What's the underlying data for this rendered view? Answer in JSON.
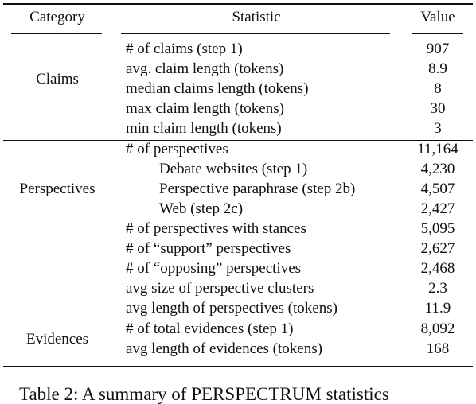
{
  "table": {
    "header": [
      "Category",
      "Statistic",
      "Value"
    ],
    "groups": [
      {
        "category": "Claims",
        "rows": [
          {
            "statistic": "# of claims (step 1)",
            "value": "907"
          },
          {
            "statistic": "avg. claim length (tokens)",
            "value": "8.9"
          },
          {
            "statistic": "median claims length (tokens)",
            "value": "8"
          },
          {
            "statistic": "max claim length (tokens)",
            "value": "30"
          },
          {
            "statistic": "min claim length (tokens)",
            "value": "3"
          }
        ]
      },
      {
        "category": "Perspectives",
        "rows": [
          {
            "statistic": "# of perspectives",
            "value": "11,164",
            "subrows": [
              {
                "statistic": "Debate websites (step 1)",
                "value": "4,230"
              },
              {
                "statistic": "Perspective paraphrase (step 2b)",
                "value": "4,507"
              },
              {
                "statistic": "Web (step 2c)",
                "value": "2,427"
              }
            ]
          },
          {
            "statistic": "# of perspectives with stances",
            "value": "5,095"
          },
          {
            "statistic": "# of “support” perspectives",
            "value": "2,627"
          },
          {
            "statistic": "# of “opposing” perspectives",
            "value": "2,468"
          },
          {
            "statistic": "avg size of perspective clusters",
            "value": "2.3"
          },
          {
            "statistic": "avg length of perspectives (tokens)",
            "value": "11.9"
          }
        ]
      },
      {
        "category": "Evidences",
        "rows": [
          {
            "statistic": "# of total evidences (step 1)",
            "value": "8,092"
          },
          {
            "statistic": "avg length of evidences (tokens)",
            "value": "168"
          }
        ]
      }
    ]
  },
  "caption": "Table 2: A summary of PERSPECTRUM statistics"
}
